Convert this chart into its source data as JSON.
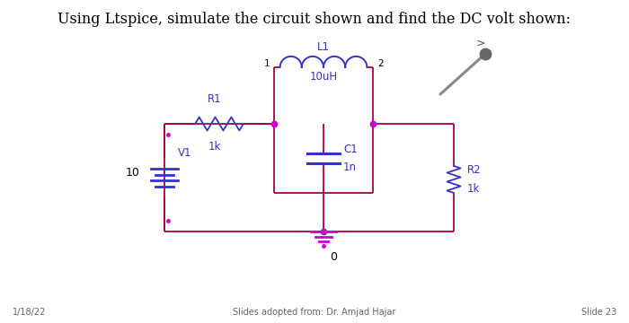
{
  "title": "Using Ltspice, simulate the circuit shown and find the DC volt shown:",
  "title_fontsize": 11.5,
  "bg_color": "#ffffff",
  "wire_color": "#aa0044",
  "component_color": "#3333cc",
  "node_color": "#cc00cc",
  "text_color": "#3333cc",
  "footer_left": "1/18/22",
  "footer_center": "Slides adopted from: Dr. Amjad Hajar",
  "footer_right": "Slide 23",
  "footer_color": "#666666",
  "footer_fontsize": 7,
  "V1_label": "V1",
  "V1_value": "10",
  "R1_label": "R1",
  "R1_value": "1k",
  "L1_label": "L1",
  "L1_value": "10uH",
  "C1_label": "C1",
  "C1_value": "1n",
  "R2_label": "R2",
  "R2_value": "1k",
  "gnd_label": "0",
  "node1_label": "1",
  "node2_label": "2"
}
